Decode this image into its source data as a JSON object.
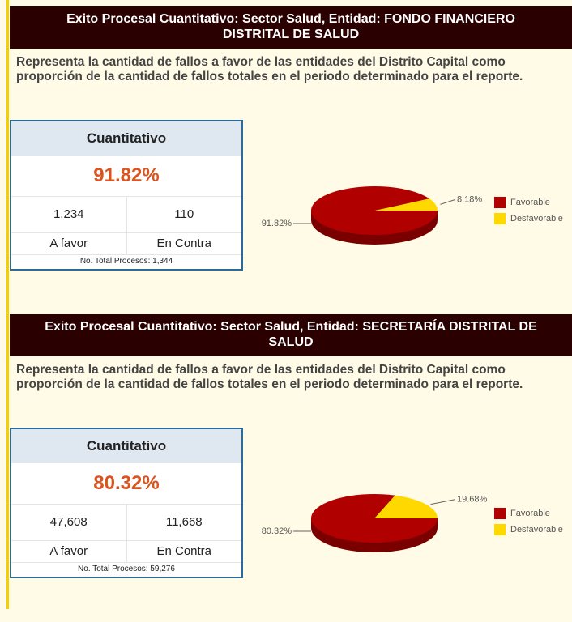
{
  "sections": [
    {
      "title": "Exito Procesal Cuantitativo: Sector Salud, Entidad: FONDO FINANCIERO DISTRITAL DE SALUD",
      "description": "Representa la cantidad de fallos a favor de las entidades del Distrito Capital como proporción de la cantidad de fallos totales en el periodo determinado para el reporte.",
      "summary": {
        "heading": "Cuantitativo",
        "percent": "91.82%",
        "counts": [
          "1,234",
          "110"
        ],
        "labels": [
          "A favor",
          "En Contra"
        ],
        "total": "No. Total Procesos: 1,344"
      },
      "chart": {
        "type": "pie",
        "categories": [
          "Favorable",
          "Desfavorable"
        ],
        "values": [
          91.82,
          8.18
        ],
        "value_labels": [
          "91.82%",
          "8.18%"
        ],
        "colors": [
          "#b00000",
          "#ffd800"
        ]
      }
    },
    {
      "title": "Exito Procesal Cuantitativo: Sector Salud, Entidad: SECRETARÍA DISTRITAL DE SALUD",
      "description": "Representa la cantidad de fallos a favor de las entidades del Distrito Capital como proporción de la cantidad de fallos totales en el periodo determinado para el reporte.",
      "summary": {
        "heading": "Cuantitativo",
        "percent": "80.32%",
        "counts": [
          "47,608",
          "11,668"
        ],
        "labels": [
          "A favor",
          "En Contra"
        ],
        "total": "No. Total Procesos: 59,276"
      },
      "chart": {
        "type": "pie",
        "categories": [
          "Favorable",
          "Desfavorable"
        ],
        "values": [
          80.32,
          19.68
        ],
        "value_labels": [
          "80.32%",
          "19.68%"
        ],
        "colors": [
          "#b00000",
          "#ffd800"
        ]
      }
    }
  ]
}
